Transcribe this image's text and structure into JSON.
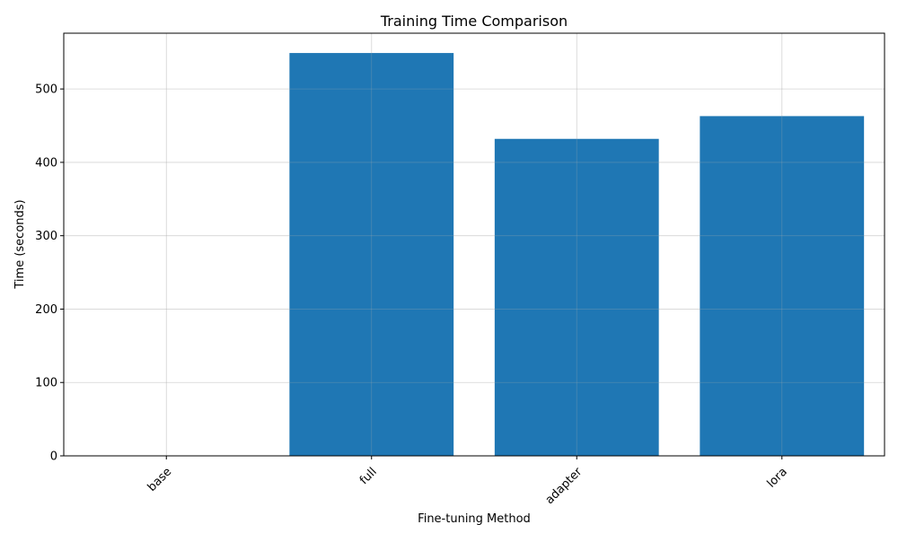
{
  "chart_data": {
    "type": "bar",
    "title": "Training Time Comparison",
    "xlabel": "Fine-tuning Method",
    "ylabel": "Time (seconds)",
    "categories": [
      "base",
      "full",
      "adapter",
      "lora"
    ],
    "values": [
      0,
      549,
      432,
      463
    ],
    "ylim": [
      0,
      576
    ],
    "yticks": [
      0,
      100,
      200,
      300,
      400,
      500
    ],
    "grid": true,
    "x_tick_rotation_deg": 45,
    "colors": {
      "bar": "#1f77b4",
      "axis": "#000000",
      "grid": "#b0b0b0"
    }
  }
}
